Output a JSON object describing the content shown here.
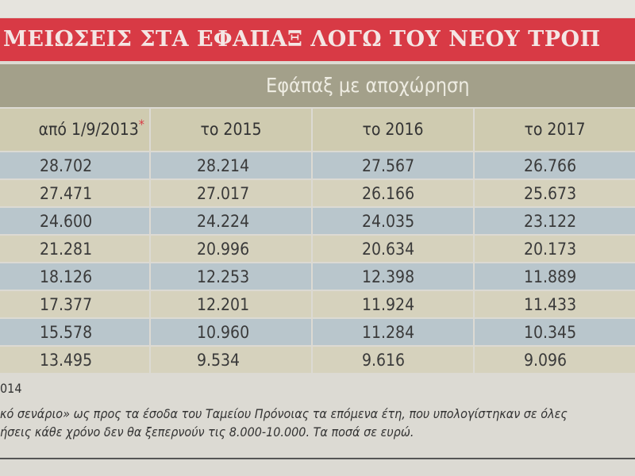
{
  "title": "ΜΕΙΩΣΕΙΣ ΣΤΑ ΕΦΑΠΑΞ ΛΟΓΩ ΤΟΥ ΝΕΟΥ ΤΡΟΠ",
  "group_header": "Εφάπαξ με αποχώρηση",
  "columns": [
    "από 1/9/2013",
    "το 2015",
    "το 2016",
    "το 2017"
  ],
  "asterisk": "*",
  "rows": [
    [
      "28.702",
      "28.214",
      "27.567",
      "26.766"
    ],
    [
      "27.471",
      "27.017",
      "26.166",
      "25.673"
    ],
    [
      "24.600",
      "24.224",
      "24.035",
      "23.122"
    ],
    [
      "21.281",
      "20.996",
      "20.634",
      "20.173"
    ],
    [
      "18.126",
      "12.253",
      "12.398",
      "11.889"
    ],
    [
      "17.377",
      "12.201",
      "11.924",
      "11.433"
    ],
    [
      "15.578",
      "10.960",
      "11.284",
      "10.345"
    ],
    [
      "13.495",
      "9.534",
      "9.616",
      "9.096"
    ]
  ],
  "footnotes": {
    "source": "014",
    "line1": "κό σενάριο» ως προς τα έσοδα του Ταμείου Πρόνοιας τα επόμενα έτη, που υπολογίστηκαν σε όλες",
    "line2": "ήσεις κάθε χρόνο δεν θα ξεπερνούν τις 8.000-10.000. Τα ποσά σε ευρώ."
  },
  "colors": {
    "banner": "#d83a45",
    "group": "#a3a08a",
    "row_blue": "#b9c6cc",
    "row_beige": "#d6d2bd"
  }
}
